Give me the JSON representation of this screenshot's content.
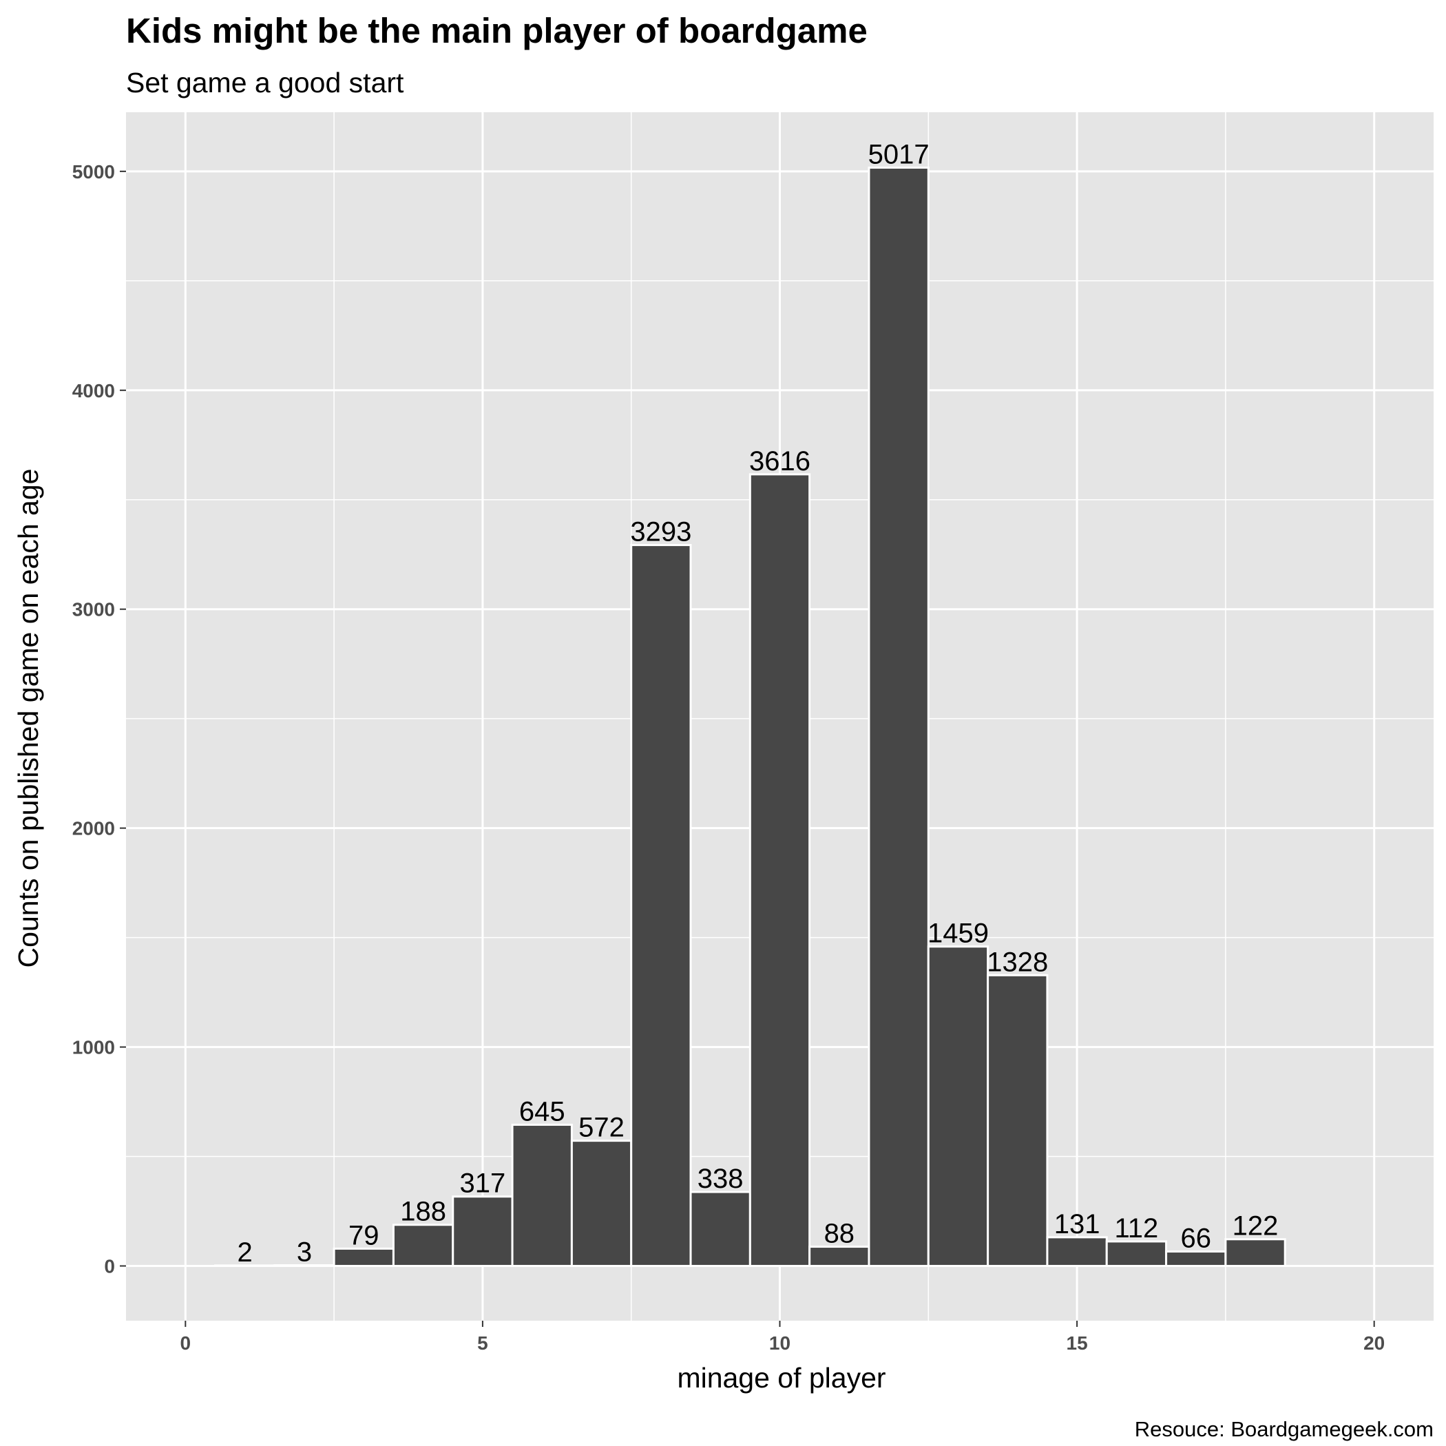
{
  "chart_data": {
    "type": "bar",
    "title": "Kids might be the main player of boardgame",
    "subtitle": "Set game a good start",
    "xlabel": "minage of player",
    "ylabel": "Counts on published game on each age",
    "caption": "Resouce: Boardgamegeek.com",
    "x": [
      1,
      2,
      3,
      4,
      5,
      6,
      7,
      8,
      9,
      10,
      11,
      12,
      13,
      14,
      15,
      16,
      17,
      18
    ],
    "values": [
      2,
      3,
      79,
      188,
      317,
      645,
      572,
      3293,
      338,
      3616,
      88,
      5017,
      1459,
      1328,
      131,
      112,
      66,
      122
    ],
    "data_labels": [
      "2",
      "3",
      "79",
      "188",
      "317",
      "645",
      "572",
      "3293",
      "338",
      "3616",
      "88",
      "5017",
      "1459",
      "1328",
      "131",
      "112",
      "66",
      "122"
    ],
    "xlim": [
      -1,
      21
    ],
    "ylim": [
      -250,
      5270
    ],
    "x_ticks": [
      0,
      5,
      10,
      15,
      20
    ],
    "x_tick_labels": [
      "0",
      "5",
      "10",
      "15",
      "20"
    ],
    "y_ticks": [
      0,
      1000,
      2000,
      3000,
      4000,
      5000
    ],
    "y_tick_labels": [
      "0",
      "1000",
      "2000",
      "3000",
      "4000",
      "5000"
    ],
    "grid": true,
    "legend": "none",
    "colors": {
      "bar_fill": "#474747",
      "bar_outline": "#ffffff",
      "panel_background": "#e5e5e5",
      "grid": "#ffffff"
    }
  }
}
